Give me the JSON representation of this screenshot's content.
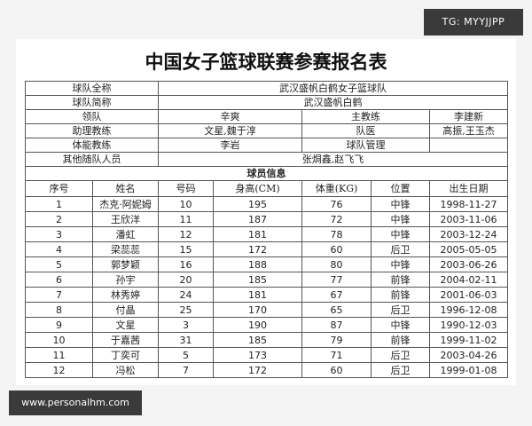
{
  "badge": "TG: MYYJJPP",
  "title": "中国女子篮球联赛参赛报名表",
  "team_info": {
    "rows": [
      [
        "球队全称",
        "武汉盛帆白鹤女子篮球队"
      ],
      [
        "球队简称",
        "武汉盛帆白鹤"
      ],
      [
        "领队",
        "辛爽",
        "主教练",
        "李建新"
      ],
      [
        "助理教练",
        "文星,魏于淳",
        "队医",
        "高振,王玉杰"
      ],
      [
        "体能教练",
        "李岩",
        "球队管理"
      ],
      [
        "其他随队人员",
        "张烔鑫,赵飞飞"
      ]
    ]
  },
  "section_title": "球员信息",
  "players": {
    "header": [
      "序号",
      "姓名",
      "号码",
      "身高(CM)",
      "体重(KG)",
      "位置",
      "出生日期"
    ],
    "rows": [
      [
        1,
        "杰克·阿妮姆",
        10,
        195,
        76,
        "中锋",
        "1998-11-27"
      ],
      [
        2,
        "王欣洋",
        11,
        187,
        72,
        "中锋",
        "2003-11-06"
      ],
      [
        3,
        "潘虹",
        12,
        181,
        78,
        "中锋",
        "2003-12-24"
      ],
      [
        4,
        "梁蕊蕊",
        15,
        172,
        60,
        "后卫",
        "2005-05-05"
      ],
      [
        5,
        "郭梦颖",
        16,
        188,
        80,
        "中锋",
        "2003-06-26"
      ],
      [
        6,
        "孙宇",
        20,
        185,
        77,
        "前锋",
        "2004-02-11"
      ],
      [
        7,
        "林秀婷",
        24,
        181,
        67,
        "前锋",
        "2001-06-03"
      ],
      [
        8,
        "付晶",
        25,
        170,
        65,
        "后卫",
        "1996-12-08"
      ],
      [
        9,
        "文星",
        3,
        190,
        87,
        "中锋",
        "1990-12-03"
      ],
      [
        10,
        "于嘉茜",
        31,
        185,
        79,
        "前锋",
        "1999-11-02"
      ],
      [
        11,
        "丁奕可",
        5,
        173,
        71,
        "后卫",
        "2003-04-26"
      ],
      [
        12,
        "冯松",
        7,
        172,
        60,
        "后卫",
        "1999-01-08"
      ]
    ]
  },
  "watermark": "www.personalhm.com"
}
